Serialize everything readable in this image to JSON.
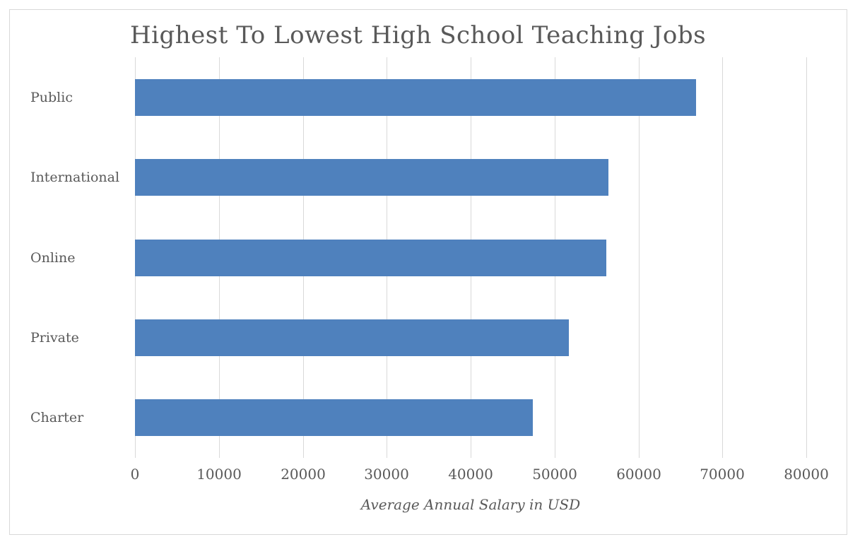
{
  "chart_data": {
    "type": "bar",
    "orientation": "horizontal",
    "title": "Highest To Lowest High School Teaching Jobs",
    "xlabel": "Average Annual Salary in USD",
    "ylabel": "",
    "categories": [
      "Public",
      "International",
      "Online",
      "Private",
      "Charter"
    ],
    "values": [
      66900,
      56400,
      56200,
      51700,
      47400
    ],
    "xlim": [
      0,
      80000
    ],
    "x_ticks": [
      0,
      10000,
      20000,
      30000,
      40000,
      50000,
      60000,
      70000,
      80000
    ],
    "grid": "vertical-gridlines-on",
    "legend": "none",
    "bar_color": "#4f81bd",
    "gridline_color": "#d9d9d9",
    "text_color": "#595959",
    "frame_border_color": "#d9d9d9",
    "background_color": "#ffffff"
  }
}
